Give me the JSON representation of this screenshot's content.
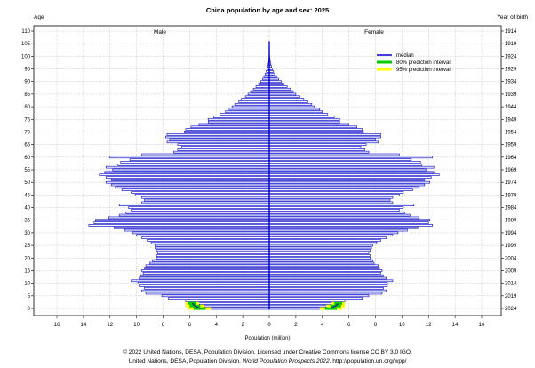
{
  "chart_data": {
    "type": "bar",
    "title": "China population by age and sex: 2025",
    "y_left_label": "Age",
    "y_right_label": "Year of birth",
    "xlabel": "Population (million)",
    "left_label": "Male",
    "right_label": "Female",
    "x_ticks": [
      16,
      14,
      12,
      10,
      8,
      6,
      4,
      2,
      0,
      2,
      4,
      6,
      8,
      10,
      12,
      14,
      16
    ],
    "x_range": [
      -16,
      16
    ],
    "age_ticks": [
      0,
      5,
      10,
      15,
      20,
      25,
      30,
      35,
      40,
      45,
      50,
      55,
      60,
      65,
      70,
      75,
      80,
      85,
      90,
      95,
      100,
      105,
      110
    ],
    "birth_year_ticks": [
      "2024",
      "2019",
      "2014",
      "2009",
      "2004",
      "1999",
      "1994",
      "1989",
      "1984",
      "1979",
      "1974",
      "1969",
      "1964",
      "1959",
      "1954",
      "1949",
      "1944",
      "1939",
      "1934",
      "1929",
      "1924",
      "1919",
      "1914"
    ],
    "age_range": [
      0,
      110
    ],
    "grid": true,
    "legend_position": "top-right",
    "legend": [
      {
        "name": "median",
        "color": "#0000cc"
      },
      {
        "name": "80% prediction interval",
        "color": "#00cc00"
      },
      {
        "name": "95% prediction interval",
        "color": "#ffff00"
      }
    ],
    "ages": [
      0,
      1,
      2,
      3,
      4,
      5,
      6,
      7,
      8,
      9,
      10,
      11,
      12,
      13,
      14,
      15,
      16,
      17,
      18,
      19,
      20,
      21,
      22,
      23,
      24,
      25,
      26,
      27,
      28,
      29,
      30,
      31,
      32,
      33,
      34,
      35,
      36,
      37,
      38,
      39,
      40,
      41,
      42,
      43,
      44,
      45,
      46,
      47,
      48,
      49,
      50,
      51,
      52,
      53,
      54,
      55,
      56,
      57,
      58,
      59,
      60,
      61,
      62,
      63,
      64,
      65,
      66,
      67,
      68,
      69,
      70,
      71,
      72,
      73,
      74,
      75,
      76,
      77,
      78,
      79,
      80,
      81,
      82,
      83,
      84,
      85,
      86,
      87,
      88,
      89,
      90,
      91,
      92,
      93,
      94,
      95,
      96,
      97,
      98,
      99,
      100,
      101,
      102,
      103,
      104,
      105,
      106,
      107,
      108,
      109,
      110
    ],
    "series": [
      {
        "name": "Male",
        "values": [
          5.2,
          5.6,
          5.8,
          6.3,
          7.6,
          8.1,
          9.3,
          9.6,
          9.4,
          9.8,
          9.9,
          10.4,
          9.8,
          9.7,
          9.5,
          9.6,
          9.4,
          9.3,
          9.0,
          8.8,
          8.5,
          8.5,
          8.4,
          8.5,
          8.6,
          8.6,
          8.9,
          9.2,
          9.6,
          10.0,
          10.3,
          10.9,
          11.7,
          13.6,
          13.2,
          13.1,
          12.1,
          11.3,
          10.8,
          10.4,
          10.6,
          11.3,
          9.6,
          9.4,
          9.6,
          10.1,
          10.4,
          11.1,
          11.6,
          11.9,
          12.3,
          11.9,
          12.3,
          12.8,
          12.4,
          11.8,
          12.3,
          11.4,
          11.2,
          10.5,
          12.0,
          9.6,
          7.2,
          6.9,
          6.6,
          6.9,
          7.7,
          7.5,
          7.8,
          7.7,
          6.4,
          6.3,
          5.9,
          5.3,
          4.6,
          4.6,
          4.2,
          3.7,
          3.3,
          3.1,
          2.8,
          2.6,
          2.3,
          2.1,
          1.8,
          1.6,
          1.4,
          1.2,
          1.0,
          0.8,
          0.65,
          0.5,
          0.4,
          0.3,
          0.22,
          0.15,
          0.11,
          0.08,
          0.05,
          0.03,
          0.02,
          0.0,
          0.0,
          0.0,
          0.0,
          0.0,
          0.0,
          0.0,
          0.0,
          0.0,
          0.0
        ]
      },
      {
        "name": "Female",
        "values": [
          4.6,
          5.0,
          5.2,
          5.7,
          7.0,
          7.5,
          8.5,
          8.8,
          8.6,
          8.9,
          8.9,
          9.3,
          8.8,
          8.6,
          8.4,
          8.5,
          8.3,
          8.2,
          7.9,
          7.8,
          7.6,
          7.6,
          7.5,
          7.6,
          7.7,
          7.8,
          8.1,
          8.4,
          8.8,
          9.3,
          9.7,
          10.4,
          11.2,
          12.3,
          12.0,
          12.1,
          11.3,
          10.6,
          10.2,
          9.8,
          10.1,
          10.9,
          9.3,
          9.1,
          9.3,
          9.8,
          10.1,
          10.8,
          11.3,
          11.7,
          12.1,
          11.7,
          12.2,
          12.8,
          12.4,
          11.8,
          12.4,
          11.5,
          11.4,
          10.7,
          12.3,
          9.8,
          7.5,
          7.2,
          6.9,
          7.3,
          8.2,
          8.0,
          8.4,
          8.4,
          7.1,
          7.0,
          6.6,
          6.0,
          5.3,
          5.3,
          4.9,
          4.4,
          4.0,
          3.8,
          3.4,
          3.2,
          2.9,
          2.6,
          2.3,
          2.0,
          1.8,
          1.6,
          1.35,
          1.1,
          0.9,
          0.7,
          0.55,
          0.42,
          0.32,
          0.23,
          0.17,
          0.12,
          0.08,
          0.05,
          0.03,
          0.0,
          0.0,
          0.0,
          0.0,
          0.0,
          0.0,
          0.0,
          0.0,
          0.0,
          0.0
        ]
      }
    ],
    "prediction_intervals": [
      {
        "age": 0,
        "male": {
          "p80": [
            4.8,
            5.7
          ],
          "p95": [
            4.4,
            6.1
          ]
        },
        "female": {
          "p80": [
            4.2,
            5.1
          ],
          "p95": [
            3.8,
            5.5
          ]
        }
      },
      {
        "age": 1,
        "male": {
          "p80": [
            5.2,
            6.0
          ],
          "p95": [
            4.9,
            6.3
          ]
        },
        "female": {
          "p80": [
            4.6,
            5.4
          ],
          "p95": [
            4.3,
            5.7
          ]
        }
      },
      {
        "age": 2,
        "male": {
          "p80": [
            5.5,
            6.1
          ],
          "p95": [
            5.3,
            6.3
          ]
        },
        "female": {
          "p80": [
            4.9,
            5.5
          ],
          "p95": [
            4.7,
            5.7
          ]
        }
      }
    ]
  },
  "footer": {
    "line1": "© 2022 United Nations, DESA, Population Division. Licensed under Creative Commons license CC BY 3.0 IGO.",
    "line2_prefix": "United Nations, DESA, Population Division. ",
    "line2_italic": "World Population Prospects 2022",
    "line2_suffix": ". http://population.un.org/wpp/"
  }
}
